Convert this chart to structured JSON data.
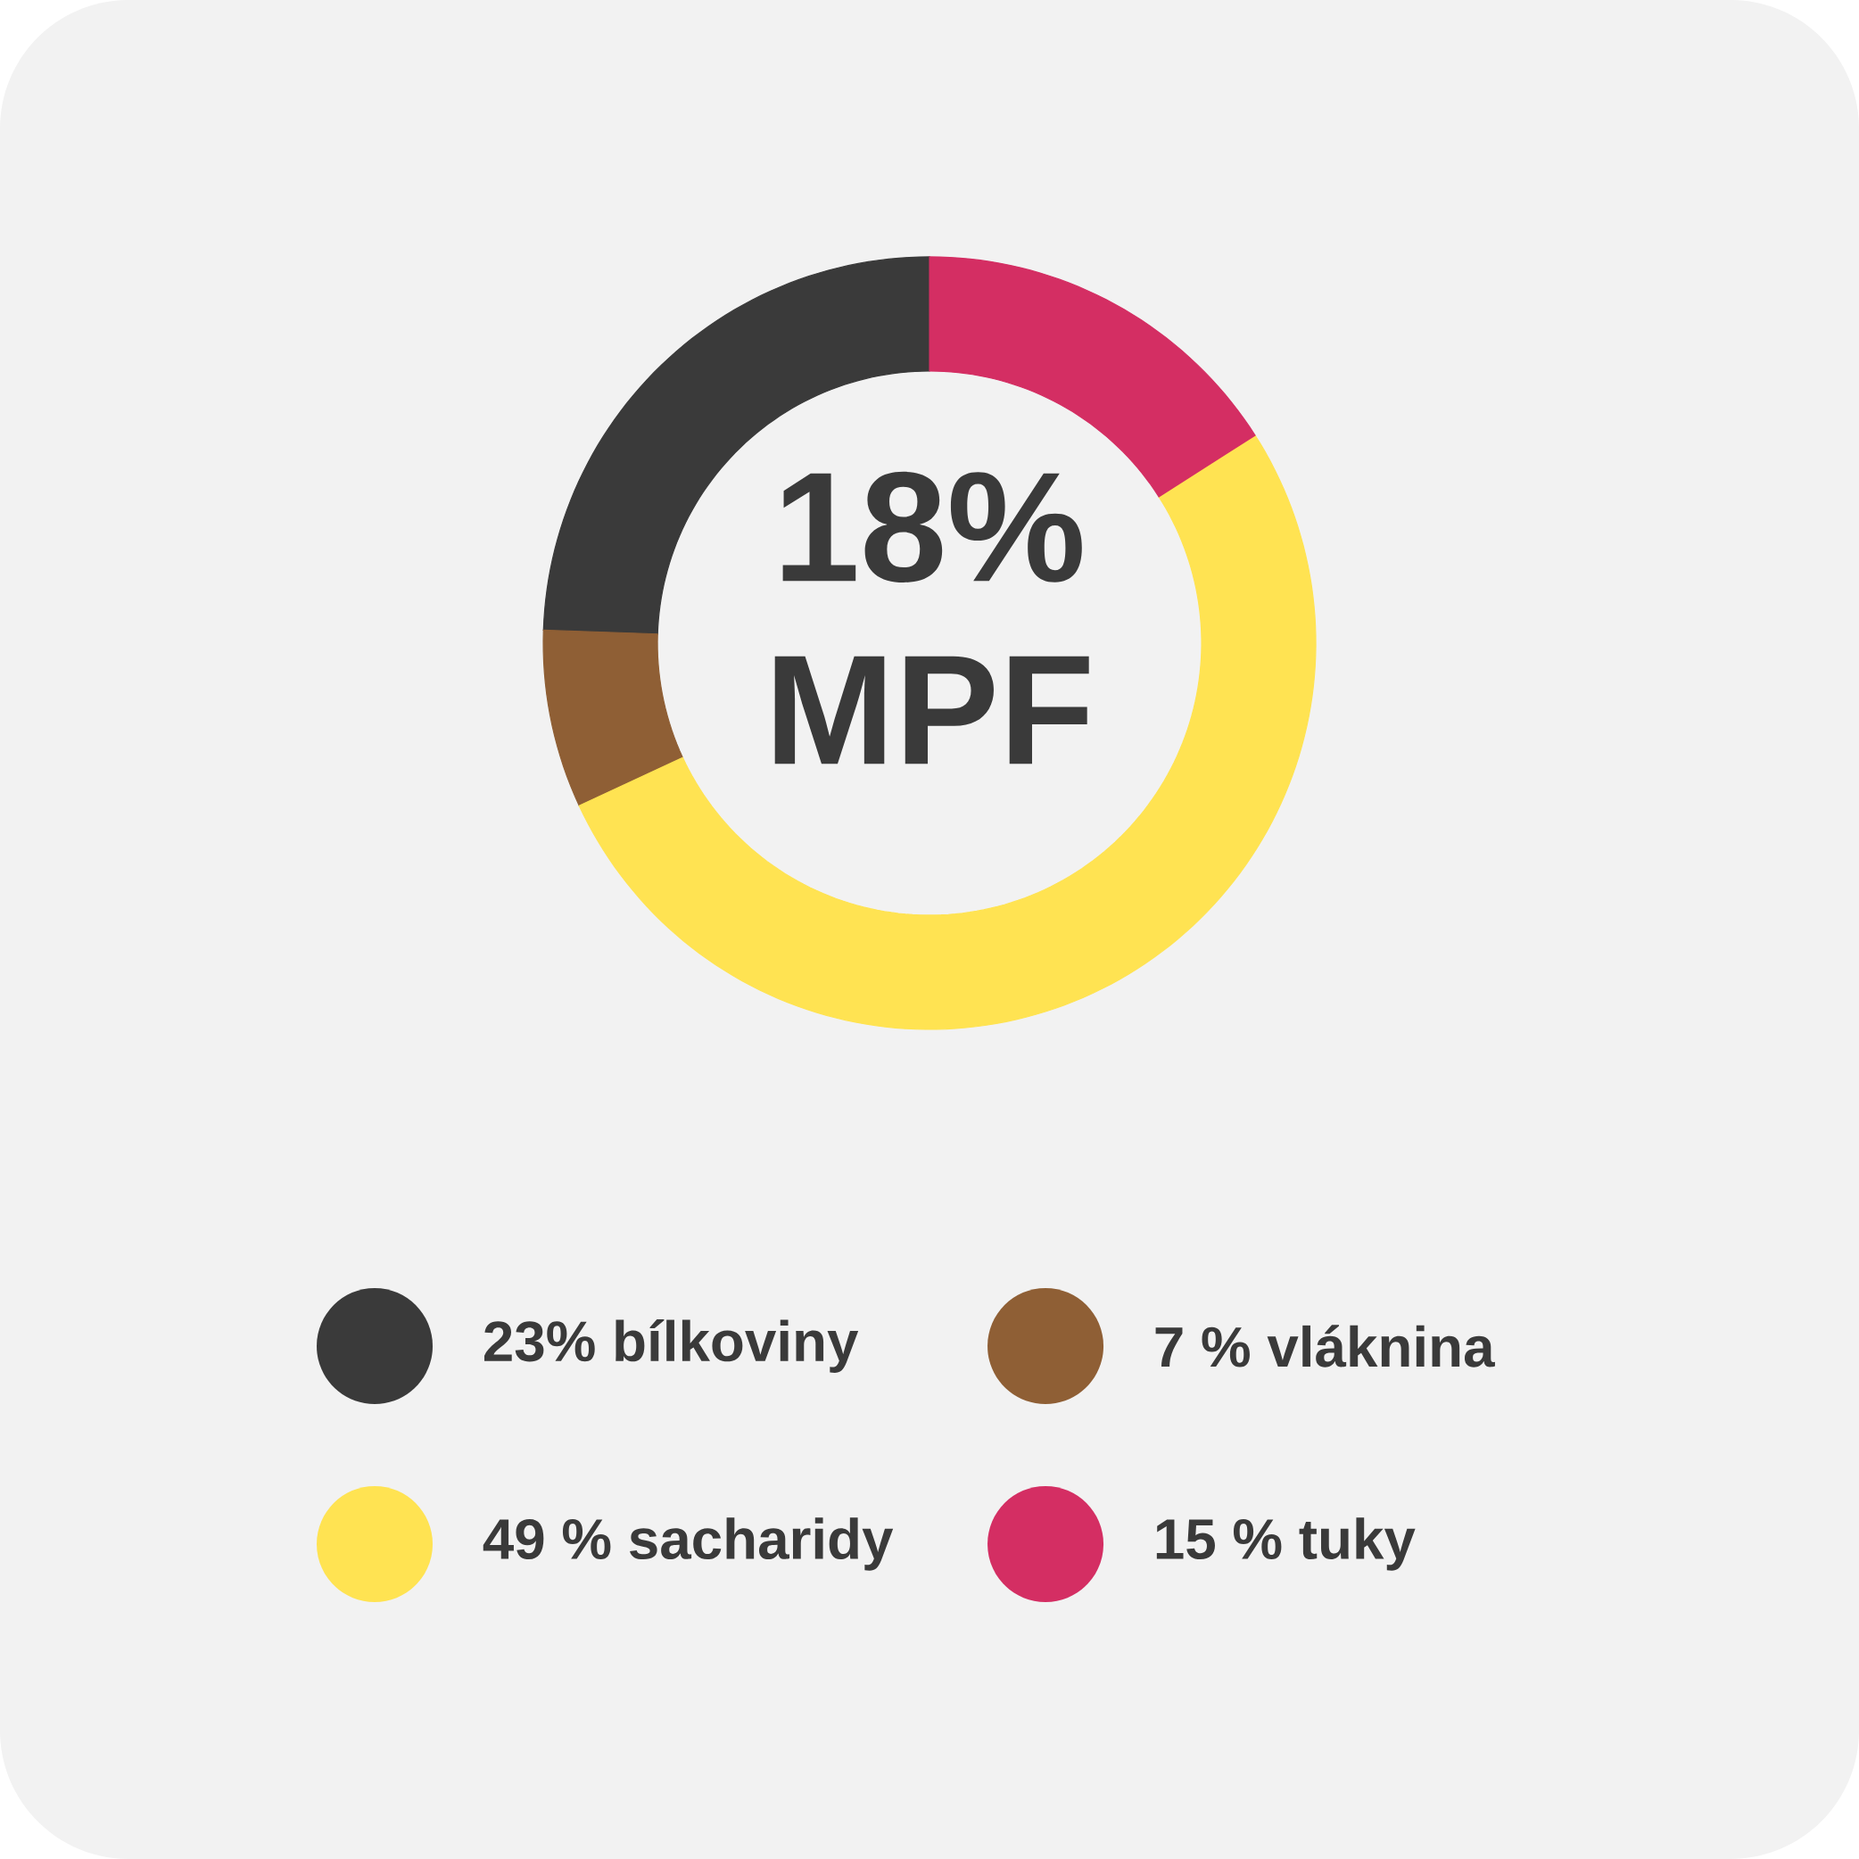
{
  "chart_data": {
    "type": "donut",
    "categories": [
      "23% bílkoviny",
      "7 % vláknina",
      "49 % sacharidy",
      "15 % tuky"
    ],
    "values": [
      23,
      7,
      49,
      15
    ],
    "colors": [
      "#3a3a3a",
      "#8f5f35",
      "#ffe352",
      "#d42e63"
    ],
    "legend": "bottom",
    "annotations": [
      "18%",
      "MPF"
    ]
  }
}
